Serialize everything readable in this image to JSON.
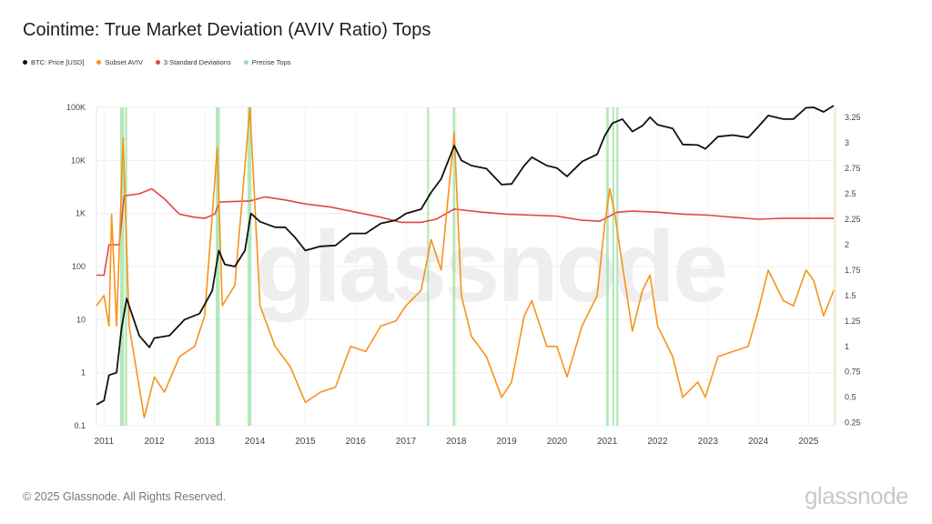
{
  "title": "Cointime: True Market Deviation (AVIV Ratio) Tops",
  "footer": "© 2025 Glassnode. All Rights Reserved.",
  "brand": "glassnode",
  "watermark": "glassnode",
  "colors": {
    "price": "#111111",
    "aviv": "#f7931a",
    "std": "#e04646",
    "tops": "#9be0a3"
  },
  "chart_data": {
    "type": "line",
    "title": "Cointime: True Market Deviation (AVIV Ratio) Tops",
    "x_ticks": [
      "2011",
      "2012",
      "2013",
      "2014",
      "2015",
      "2016",
      "2017",
      "2018",
      "2019",
      "2020",
      "2021",
      "2022",
      "2023",
      "2024",
      "2025"
    ],
    "x_range": [
      2010.85,
      2025.5
    ],
    "y_left_ticks": [
      "0.1",
      "1",
      "10",
      "100",
      "1K",
      "10K",
      "100K"
    ],
    "y_left_scale": "log",
    "y_left_range": [
      0.1,
      100000
    ],
    "y_right_ticks": [
      "0.25",
      "0.5",
      "0.75",
      "1",
      "1.25",
      "1.5",
      "1.75",
      "2",
      "2.25",
      "2.5",
      "2.75",
      "3",
      "3.25"
    ],
    "y_right_range": [
      0.22,
      3.35
    ],
    "grid": true,
    "legend_placement": "top-left",
    "series": [
      {
        "name": "BTC: Price [USD]",
        "axis": "left",
        "points": [
          [
            2010.85,
            0.25
          ],
          [
            2011.0,
            0.3
          ],
          [
            2011.1,
            0.9
          ],
          [
            2011.25,
            1.0
          ],
          [
            2011.35,
            7
          ],
          [
            2011.45,
            25
          ],
          [
            2011.55,
            13
          ],
          [
            2011.7,
            5
          ],
          [
            2011.9,
            3
          ],
          [
            2012.0,
            4.5
          ],
          [
            2012.3,
            5
          ],
          [
            2012.6,
            10
          ],
          [
            2012.9,
            13
          ],
          [
            2013.15,
            35
          ],
          [
            2013.28,
            200
          ],
          [
            2013.4,
            110
          ],
          [
            2013.6,
            100
          ],
          [
            2013.8,
            200
          ],
          [
            2013.92,
            1000
          ],
          [
            2014.1,
            700
          ],
          [
            2014.4,
            550
          ],
          [
            2014.6,
            550
          ],
          [
            2014.8,
            350
          ],
          [
            2015.0,
            200
          ],
          [
            2015.3,
            240
          ],
          [
            2015.6,
            250
          ],
          [
            2015.9,
            420
          ],
          [
            2016.2,
            420
          ],
          [
            2016.5,
            650
          ],
          [
            2016.8,
            750
          ],
          [
            2017.0,
            1000
          ],
          [
            2017.3,
            1200
          ],
          [
            2017.5,
            2500
          ],
          [
            2017.7,
            4500
          ],
          [
            2017.96,
            19000
          ],
          [
            2018.1,
            10000
          ],
          [
            2018.3,
            8000
          ],
          [
            2018.6,
            7000
          ],
          [
            2018.9,
            3500
          ],
          [
            2019.1,
            3600
          ],
          [
            2019.35,
            8000
          ],
          [
            2019.5,
            11500
          ],
          [
            2019.8,
            8000
          ],
          [
            2020.0,
            7200
          ],
          [
            2020.2,
            5000
          ],
          [
            2020.5,
            9500
          ],
          [
            2020.8,
            13000
          ],
          [
            2020.95,
            29000
          ],
          [
            2021.1,
            50000
          ],
          [
            2021.3,
            60000
          ],
          [
            2021.5,
            35000
          ],
          [
            2021.7,
            45000
          ],
          [
            2021.85,
            65000
          ],
          [
            2022.0,
            47000
          ],
          [
            2022.3,
            40000
          ],
          [
            2022.5,
            20000
          ],
          [
            2022.8,
            19500
          ],
          [
            2022.95,
            16500
          ],
          [
            2023.2,
            28000
          ],
          [
            2023.5,
            30000
          ],
          [
            2023.8,
            27000
          ],
          [
            2024.0,
            43000
          ],
          [
            2024.2,
            70000
          ],
          [
            2024.5,
            60000
          ],
          [
            2024.7,
            60000
          ],
          [
            2024.95,
            98000
          ],
          [
            2025.1,
            100000
          ],
          [
            2025.3,
            82000
          ],
          [
            2025.5,
            108000
          ]
        ]
      },
      {
        "name": "Subset AVIV",
        "axis": "right",
        "points": [
          [
            2010.85,
            1.4
          ],
          [
            2011.0,
            1.5
          ],
          [
            2011.1,
            1.2
          ],
          [
            2011.15,
            2.3
          ],
          [
            2011.25,
            1.2
          ],
          [
            2011.38,
            3.05
          ],
          [
            2011.5,
            1.2
          ],
          [
            2011.6,
            0.9
          ],
          [
            2011.8,
            0.3
          ],
          [
            2012.0,
            0.7
          ],
          [
            2012.2,
            0.55
          ],
          [
            2012.5,
            0.9
          ],
          [
            2012.8,
            1.0
          ],
          [
            2013.0,
            1.3
          ],
          [
            2013.25,
            2.95
          ],
          [
            2013.35,
            1.4
          ],
          [
            2013.6,
            1.6
          ],
          [
            2013.9,
            3.35
          ],
          [
            2014.1,
            1.4
          ],
          [
            2014.4,
            1.0
          ],
          [
            2014.7,
            0.8
          ],
          [
            2015.0,
            0.45
          ],
          [
            2015.3,
            0.55
          ],
          [
            2015.6,
            0.6
          ],
          [
            2015.9,
            1.0
          ],
          [
            2016.2,
            0.95
          ],
          [
            2016.5,
            1.2
          ],
          [
            2016.8,
            1.25
          ],
          [
            2017.0,
            1.4
          ],
          [
            2017.3,
            1.55
          ],
          [
            2017.5,
            2.05
          ],
          [
            2017.7,
            1.75
          ],
          [
            2017.96,
            3.1
          ],
          [
            2018.1,
            1.5
          ],
          [
            2018.3,
            1.1
          ],
          [
            2018.6,
            0.9
          ],
          [
            2018.9,
            0.5
          ],
          [
            2019.1,
            0.65
          ],
          [
            2019.35,
            1.3
          ],
          [
            2019.5,
            1.45
          ],
          [
            2019.8,
            1.0
          ],
          [
            2020.0,
            1.0
          ],
          [
            2020.2,
            0.7
          ],
          [
            2020.5,
            1.2
          ],
          [
            2020.8,
            1.5
          ],
          [
            2020.95,
            2.2
          ],
          [
            2021.05,
            2.55
          ],
          [
            2021.15,
            2.3
          ],
          [
            2021.3,
            1.8
          ],
          [
            2021.5,
            1.15
          ],
          [
            2021.7,
            1.55
          ],
          [
            2021.85,
            1.7
          ],
          [
            2022.0,
            1.2
          ],
          [
            2022.3,
            0.9
          ],
          [
            2022.5,
            0.5
          ],
          [
            2022.8,
            0.65
          ],
          [
            2022.95,
            0.5
          ],
          [
            2023.2,
            0.9
          ],
          [
            2023.5,
            0.95
          ],
          [
            2023.8,
            1.0
          ],
          [
            2024.0,
            1.35
          ],
          [
            2024.2,
            1.75
          ],
          [
            2024.5,
            1.45
          ],
          [
            2024.7,
            1.4
          ],
          [
            2024.95,
            1.75
          ],
          [
            2025.1,
            1.65
          ],
          [
            2025.3,
            1.3
          ],
          [
            2025.5,
            1.55
          ]
        ]
      },
      {
        "name": "3 Standard Deviations",
        "axis": "right",
        "points": [
          [
            2010.85,
            1.7
          ],
          [
            2011.0,
            1.7
          ],
          [
            2011.1,
            2.0
          ],
          [
            2011.3,
            2.0
          ],
          [
            2011.4,
            2.48
          ],
          [
            2011.7,
            2.5
          ],
          [
            2011.95,
            2.55
          ],
          [
            2012.2,
            2.45
          ],
          [
            2012.5,
            2.3
          ],
          [
            2012.8,
            2.27
          ],
          [
            2013.0,
            2.26
          ],
          [
            2013.2,
            2.3
          ],
          [
            2013.3,
            2.42
          ],
          [
            2013.9,
            2.43
          ],
          [
            2014.2,
            2.47
          ],
          [
            2014.6,
            2.44
          ],
          [
            2015.0,
            2.4
          ],
          [
            2015.5,
            2.37
          ],
          [
            2016.0,
            2.32
          ],
          [
            2016.5,
            2.27
          ],
          [
            2016.9,
            2.22
          ],
          [
            2017.3,
            2.22
          ],
          [
            2017.6,
            2.25
          ],
          [
            2017.96,
            2.35
          ],
          [
            2018.5,
            2.32
          ],
          [
            2019.0,
            2.3
          ],
          [
            2019.5,
            2.29
          ],
          [
            2020.0,
            2.28
          ],
          [
            2020.5,
            2.24
          ],
          [
            2020.85,
            2.23
          ],
          [
            2021.2,
            2.32
          ],
          [
            2021.5,
            2.33
          ],
          [
            2022.0,
            2.32
          ],
          [
            2022.5,
            2.3
          ],
          [
            2023.0,
            2.29
          ],
          [
            2023.5,
            2.27
          ],
          [
            2024.0,
            2.25
          ],
          [
            2024.5,
            2.26
          ],
          [
            2025.0,
            2.26
          ],
          [
            2025.5,
            2.26
          ]
        ]
      },
      {
        "name": "Precise Tops",
        "type": "bands",
        "ranges": [
          [
            2011.32,
            2011.4
          ],
          [
            2011.42,
            2011.46
          ],
          [
            2013.22,
            2013.3
          ],
          [
            2013.85,
            2013.93
          ],
          [
            2017.42,
            2017.46
          ],
          [
            2017.93,
            2017.98
          ],
          [
            2020.98,
            2021.03
          ],
          [
            2021.1,
            2021.14
          ],
          [
            2021.18,
            2021.22
          ]
        ]
      }
    ]
  }
}
